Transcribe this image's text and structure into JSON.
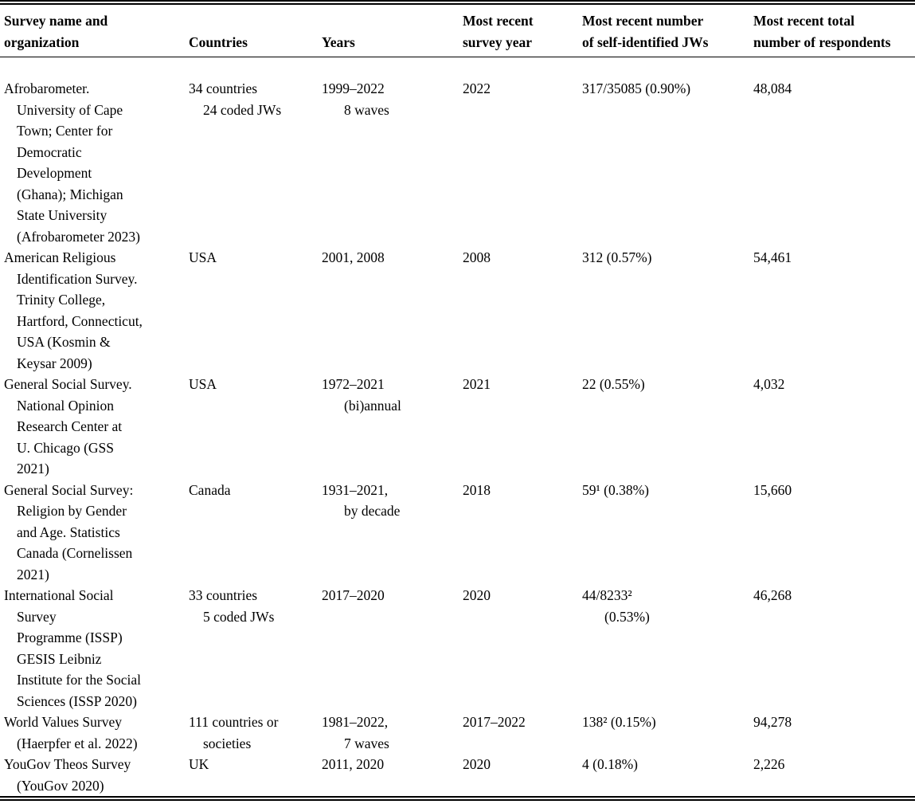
{
  "page": {
    "background_color": "#ffffff",
    "text_color": "#000000"
  },
  "table": {
    "columns": [
      "Survey name and\norganization",
      "Countries",
      "Years",
      "Most recent\nsurvey year",
      "Most recent number\nof self-identified JWs",
      "Most recent total\nnumber of respondents"
    ],
    "rows": [
      {
        "survey": "Afrobarometer.\nUniversity of Cape\nTown; Center for\nDemocratic\nDevelopment\n(Ghana); Michigan\nState University\n(Afrobarometer 2023)",
        "countries": "34 countries\n24 coded JWs",
        "years": "1999–2022\n8 waves",
        "recent_year": "2022",
        "jws": "317/35085 (0.90%)",
        "respondents": "48,084"
      },
      {
        "survey": "American Religious\nIdentification Survey.\nTrinity College,\nHartford, Connecticut,\nUSA (Kosmin &\nKeysar 2009)",
        "countries": "USA",
        "years": "2001, 2008",
        "recent_year": "2008",
        "jws": "312 (0.57%)",
        "respondents": "54,461"
      },
      {
        "survey": "General Social Survey.\nNational Opinion\nResearch Center at\nU. Chicago (GSS\n2021)",
        "countries": "USA",
        "years": "1972–2021\n(bi)annual",
        "recent_year": "2021",
        "jws": "22 (0.55%)",
        "respondents": "4,032"
      },
      {
        "survey": "General Social Survey:\nReligion by Gender\nand Age. Statistics\nCanada (Cornelissen\n2021)",
        "countries": "Canada",
        "years": "1931–2021,\nby decade",
        "recent_year": "2018",
        "jws": "59¹ (0.38%)",
        "respondents": "15,660"
      },
      {
        "survey": "International Social\nSurvey\nProgramme (ISSP)\nGESIS Leibniz\nInstitute for the Social\nSciences (ISSP 2020)",
        "countries": "33 countries\n5 coded JWs",
        "years": "2017–2020",
        "recent_year": "2020",
        "jws": "44/8233²\n(0.53%)",
        "respondents": "46,268"
      },
      {
        "survey": "World Values Survey\n(Haerpfer et al. 2022)",
        "countries": "111 countries or\nsocieties",
        "years": "1981–2022,\n7 waves",
        "recent_year": "2017–2022",
        "jws": "138² (0.15%)",
        "respondents": "94,278"
      },
      {
        "survey": "YouGov Theos Survey\n(YouGov 2020)",
        "countries": "UK",
        "years": "2011, 2020",
        "recent_year": "2020",
        "jws": "4 (0.18%)",
        "respondents": "2,226"
      }
    ]
  }
}
